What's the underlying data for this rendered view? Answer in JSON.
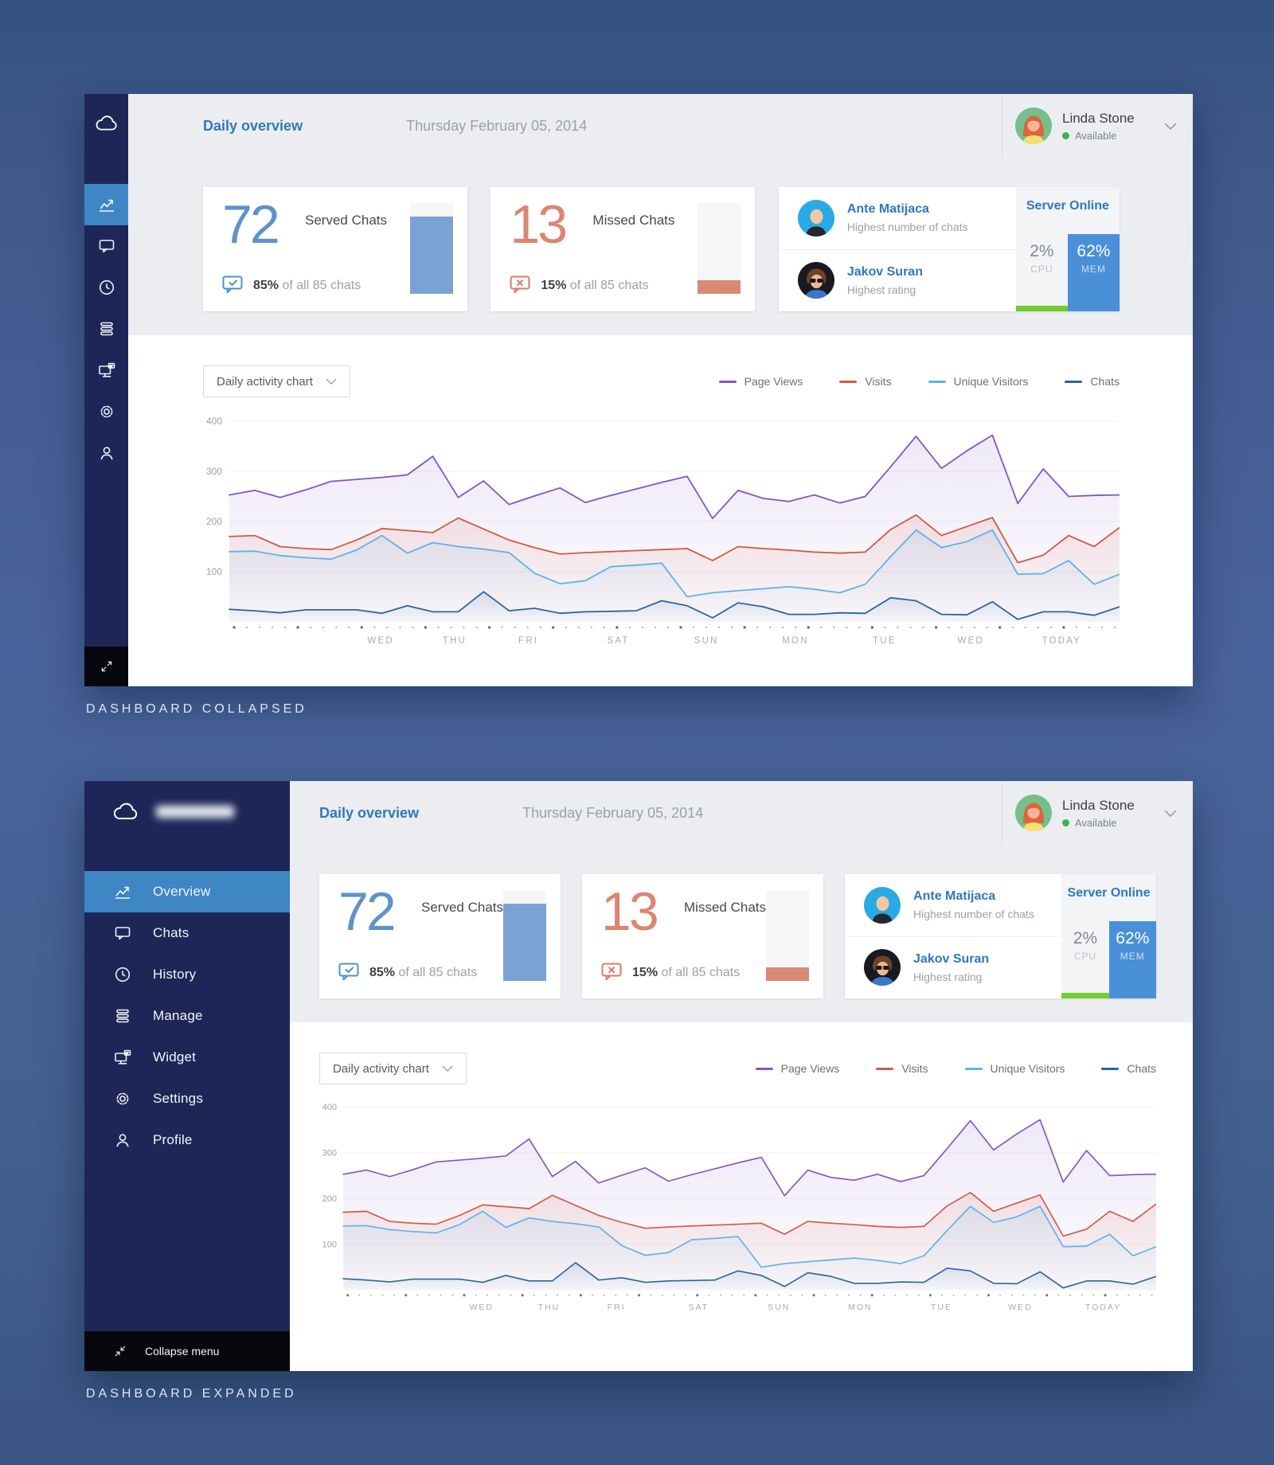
{
  "captions": {
    "collapsed": "DASHBOARD COLLAPSED",
    "expanded": "DASHBOARD EXPANDED"
  },
  "header": {
    "title": "Daily overview",
    "date": "Thursday February 05, 2014",
    "user": {
      "name": "Linda Stone",
      "status": "Available",
      "status_color": "#3ab54a"
    }
  },
  "sidebar": {
    "items": [
      {
        "label": "Overview",
        "icon": "chart",
        "active": true
      },
      {
        "label": "Chats",
        "icon": "chat",
        "active": false
      },
      {
        "label": "History",
        "icon": "clock",
        "active": false
      },
      {
        "label": "Manage",
        "icon": "stack",
        "active": false
      },
      {
        "label": "Widget",
        "icon": "widget",
        "active": false
      },
      {
        "label": "Settings",
        "icon": "gear",
        "active": false
      },
      {
        "label": "Profile",
        "icon": "person",
        "active": false
      }
    ],
    "collapse_label": "Collapse menu",
    "active_color": "#3f86c5"
  },
  "cards": {
    "served": {
      "value": "72",
      "label": "Served Chats",
      "percent_text": "85%",
      "footer_text": "of all 85 chats",
      "bar_percent": 85,
      "accent": "#5e92c8"
    },
    "missed": {
      "value": "13",
      "label": "Missed Chats",
      "percent_text": "15%",
      "footer_text": "of all 85 chats",
      "bar_percent": 15,
      "accent": "#dc8570"
    },
    "team": [
      {
        "name": "Ante Matijaca",
        "desc": "Highest number of chats"
      },
      {
        "name": "Jakov Suran",
        "desc": "Highest rating"
      }
    ],
    "server": {
      "title": "Server Online",
      "cpu": {
        "value": "2%",
        "label": "CPU",
        "percent": 2,
        "bar_color": "#6fce2e"
      },
      "mem": {
        "value": "62%",
        "label": "MEM",
        "percent": 62,
        "bar_color": "#4a90d9"
      }
    }
  },
  "chart": {
    "selector_label": "Daily activity chart"
  },
  "chart_data": {
    "type": "area",
    "title": "Daily activity chart",
    "categories": [
      "WED",
      "THU",
      "FRI",
      "SAT",
      "SUN",
      "MON",
      "TUE",
      "WED",
      "TODAY"
    ],
    "category_positions": [
      0.17,
      0.253,
      0.336,
      0.437,
      0.536,
      0.636,
      0.736,
      0.833,
      0.935
    ],
    "ylim": [
      0,
      400
    ],
    "yticks": [
      400,
      300,
      200,
      100
    ],
    "grid": true,
    "legend_position": "top-right",
    "series": [
      {
        "name": "Page Views",
        "color": "#8156c6",
        "values": [
          253,
          262,
          248,
          263,
          280,
          284,
          288,
          293,
          330,
          248,
          281,
          234,
          251,
          267,
          238,
          252,
          265,
          278,
          290,
          206,
          262,
          246,
          240,
          253,
          237,
          250,
          309,
          370,
          306,
          341,
          372,
          236,
          305,
          250,
          252,
          253
        ]
      },
      {
        "name": "Visits",
        "color": "#d05a43",
        "values": [
          170,
          172,
          150,
          146,
          144,
          163,
          186,
          182,
          178,
          207,
          185,
          163,
          148,
          135,
          138,
          140,
          142,
          144,
          146,
          122,
          150,
          146,
          143,
          139,
          137,
          139,
          184,
          213,
          172,
          190,
          208,
          118,
          133,
          172,
          150,
          188
        ]
      },
      {
        "name": "Unique Visitors",
        "color": "#5bb3ea",
        "values": [
          140,
          141,
          132,
          128,
          125,
          143,
          172,
          137,
          158,
          150,
          145,
          138,
          97,
          76,
          82,
          110,
          113,
          117,
          50,
          58,
          62,
          66,
          70,
          65,
          58,
          75,
          130,
          183,
          148,
          160,
          183,
          95,
          96,
          122,
          75,
          95
        ]
      },
      {
        "name": "Chats",
        "color": "#2e649e",
        "values": [
          25,
          22,
          18,
          24,
          24,
          24,
          17,
          32,
          20,
          20,
          60,
          22,
          27,
          17,
          20,
          21,
          22,
          42,
          32,
          8,
          38,
          30,
          15,
          15,
          18,
          17,
          48,
          42,
          15,
          14,
          40,
          5,
          20,
          20,
          13,
          30
        ]
      }
    ]
  }
}
